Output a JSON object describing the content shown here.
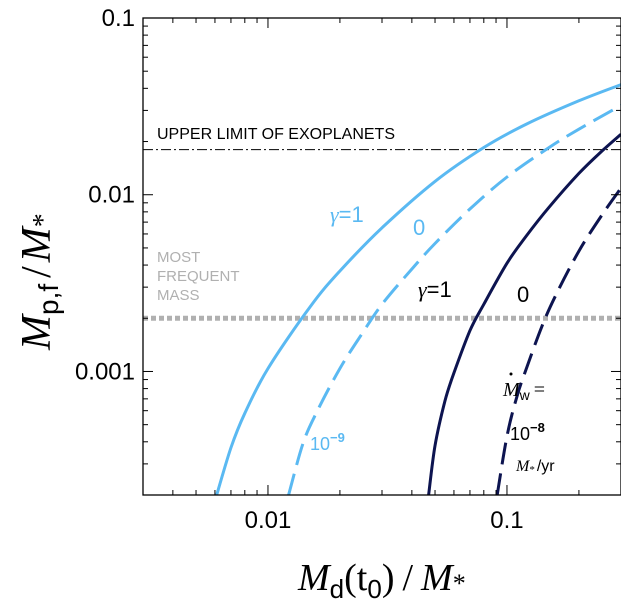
{
  "chart_data": {
    "type": "line",
    "title": "",
    "x_axis": {
      "label_main": "M",
      "label_sub": "d",
      "label_arg": "(t",
      "label_arg_sub": "0",
      "label_close": ")",
      "label_div": "/",
      "label_den": "M",
      "label_den_sub": "*",
      "scale": "log",
      "range": [
        0.003,
        0.3
      ],
      "ticks": [
        {
          "value": 0.01,
          "label": "0.01"
        },
        {
          "value": 0.1,
          "label": "0.1"
        }
      ]
    },
    "y_axis": {
      "label_main": "M",
      "label_sub": "p,f",
      "label_div": "/",
      "label_den": "M",
      "label_den_sub": "*",
      "scale": "log",
      "range": [
        0.0002,
        0.1
      ],
      "ticks": [
        {
          "value": 0.001,
          "label": "0.001"
        },
        {
          "value": 0.01,
          "label": "0.01"
        },
        {
          "value": 0.1,
          "label": "0.1"
        }
      ]
    },
    "grid": false,
    "reference_lines": [
      {
        "y": 0.018,
        "style": "dash-dot",
        "color": "#000000",
        "label": "UPPER LIMIT OF EXOPLANETS"
      },
      {
        "y": 0.002,
        "style": "dotted",
        "color": "#b0b0b0",
        "label_lines": [
          "MOST",
          "FREQUENT",
          "MASS"
        ]
      }
    ],
    "series": [
      {
        "mdot": "1e-9",
        "gamma": "1",
        "color": "#5ab9f2",
        "dash": "solid",
        "x": [
          0.0061,
          0.007,
          0.008,
          0.01,
          0.015,
          0.02,
          0.03,
          0.05,
          0.08,
          0.12,
          0.2,
          0.3
        ],
        "y": [
          0.0002,
          0.00037,
          0.00058,
          0.00104,
          0.00232,
          0.0037,
          0.0065,
          0.0119,
          0.0185,
          0.025,
          0.034,
          0.042
        ]
      },
      {
        "mdot": "1e-9",
        "gamma": "0",
        "color": "#5ab9f2",
        "dash": "dashed",
        "x": [
          0.0122,
          0.014,
          0.016,
          0.02,
          0.025,
          0.03,
          0.04,
          0.05,
          0.07,
          0.1,
          0.15,
          0.2,
          0.3
        ],
        "y": [
          0.0002,
          0.00039,
          0.00059,
          0.00104,
          0.00167,
          0.0024,
          0.0038,
          0.0053,
          0.0083,
          0.0126,
          0.0185,
          0.0235,
          0.032
        ]
      },
      {
        "mdot": "1e-8",
        "gamma": "1",
        "color": "#0d1450",
        "dash": "solid",
        "x": [
          0.047,
          0.05,
          0.055,
          0.06,
          0.07,
          0.08,
          0.1,
          0.12,
          0.15,
          0.2,
          0.25,
          0.3
        ],
        "y": [
          0.0002,
          0.00038,
          0.00068,
          0.00098,
          0.0017,
          0.0024,
          0.0041,
          0.0058,
          0.0085,
          0.0132,
          0.0177,
          0.022
        ]
      },
      {
        "mdot": "1e-8",
        "gamma": "0",
        "color": "#0d1450",
        "dash": "dashed",
        "x": [
          0.091,
          0.1,
          0.11,
          0.12,
          0.14,
          0.16,
          0.2,
          0.25,
          0.3
        ],
        "y": [
          0.0002,
          0.00043,
          0.00072,
          0.00102,
          0.0018,
          0.0027,
          0.0048,
          0.0077,
          0.0109
        ]
      }
    ],
    "annotations": {
      "light_gamma1": {
        "gamma": "γ",
        "eq": "=1",
        "color": "#5ab9f2"
      },
      "light_gamma0": {
        "text": "0",
        "color": "#5ab9f2"
      },
      "light_mdot": {
        "base": "10",
        "exp": "−9",
        "color": "#5ab9f2"
      },
      "dark_gamma1": {
        "gamma": "γ",
        "eq": "=1",
        "color": "#000000"
      },
      "dark_gamma0": {
        "text": "0",
        "color": "#000000"
      },
      "dark_mdot": {
        "sym": "M",
        "sub": "w",
        "eq": "=",
        "base": "10",
        "exp": "−8",
        "unit_m": "M",
        "unit_star": "*",
        "unit_rest": "/yr",
        "color": "#000000"
      }
    }
  }
}
